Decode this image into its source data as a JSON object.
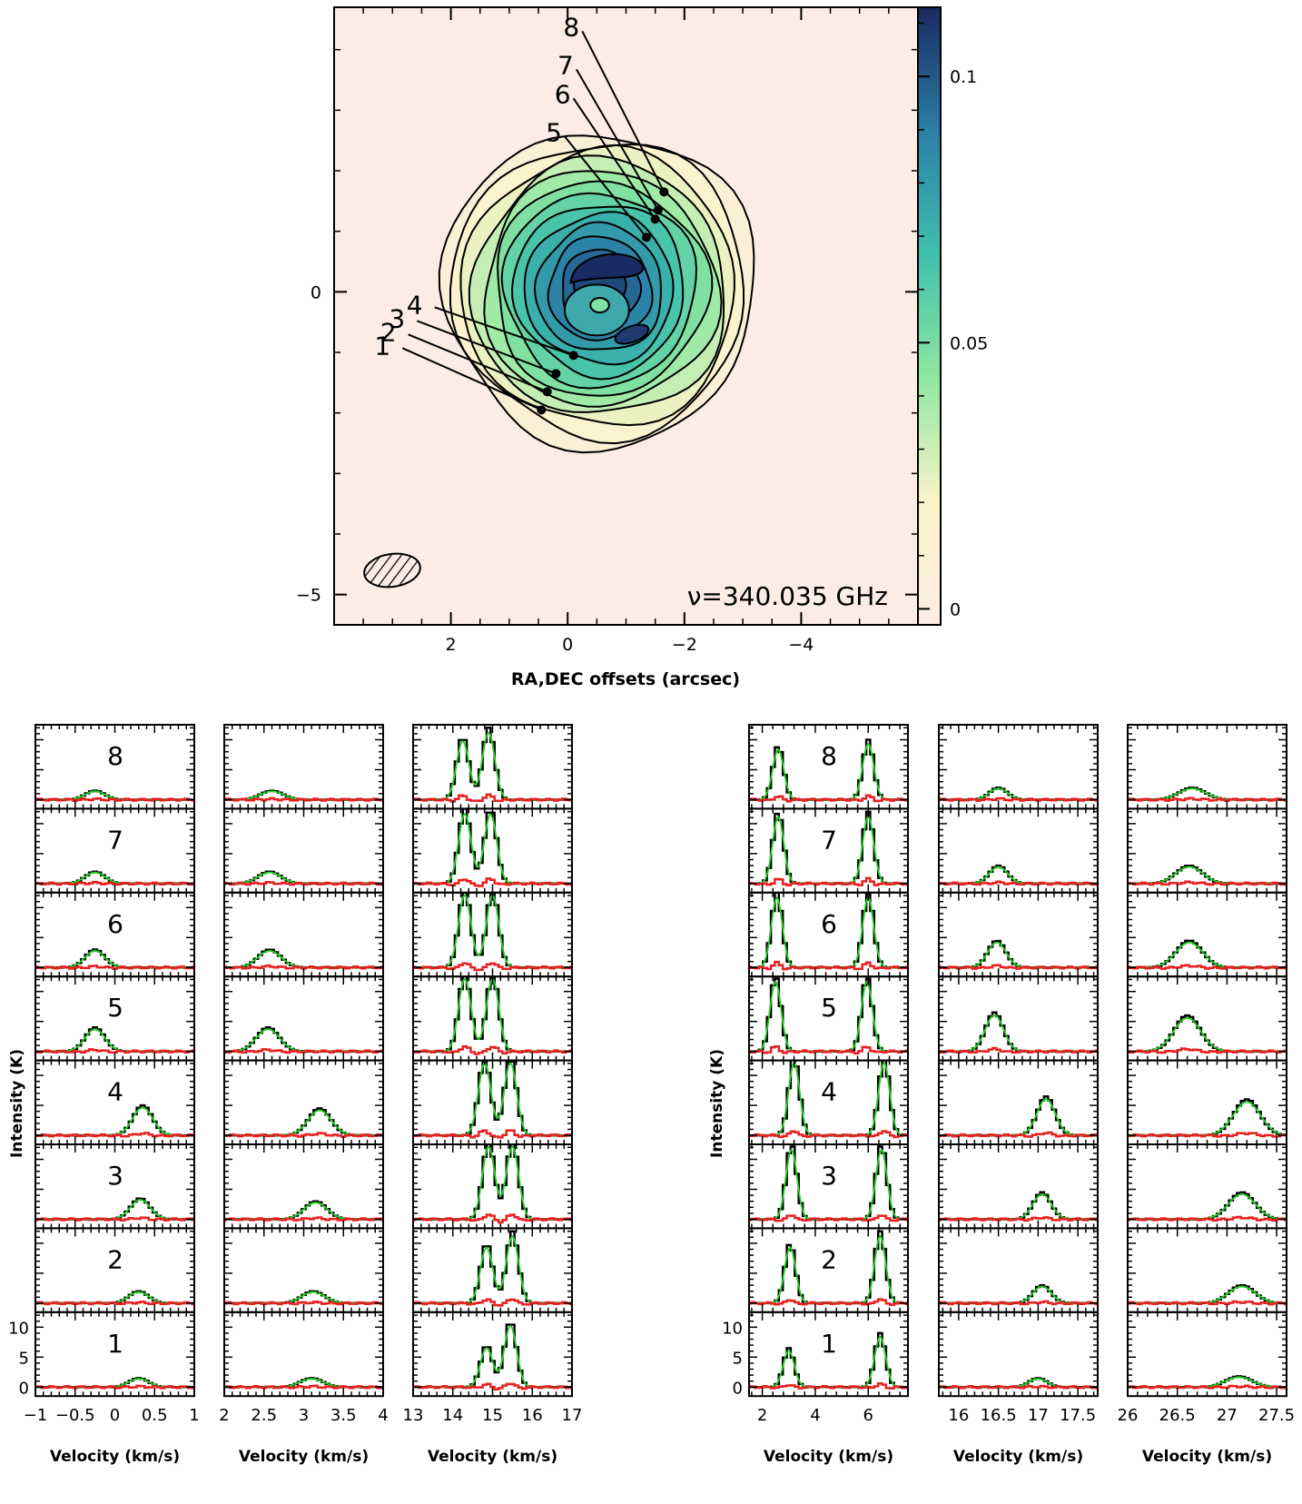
{
  "map": {
    "xlabel": "RA,DEC offsets (arcsec)",
    "annotation": "ν=340.035 GHz",
    "x_ticks": [
      "2",
      "0",
      "−2",
      "−4"
    ],
    "x_tick_values": [
      2,
      0,
      -2,
      -4
    ],
    "y_ticks": [
      "0",
      "−5"
    ],
    "y_tick_values": [
      0,
      -5
    ],
    "xlim": [
      4,
      -6
    ],
    "ylim": [
      -5.5,
      4.7
    ],
    "colorbar_ticks": [
      "0.1",
      "0.05",
      "0"
    ],
    "colorbar_values": [
      0.1,
      0.05,
      0
    ],
    "colorbar_range": [
      -0.003,
      0.113
    ],
    "colormap": [
      "#fcece4",
      "#fbf3c8",
      "#8ee8a0",
      "#3fc0ac",
      "#2b7fa8",
      "#1a2a62"
    ],
    "positions": [
      {
        "label": "1",
        "x": 0.45,
        "y": -1.95
      },
      {
        "label": "2",
        "x": 0.35,
        "y": -1.65
      },
      {
        "label": "3",
        "x": 0.2,
        "y": -1.35
      },
      {
        "label": "4",
        "x": -0.1,
        "y": -1.05
      },
      {
        "label": "5",
        "x": -1.35,
        "y": 0.9
      },
      {
        "label": "6",
        "x": -1.5,
        "y": 1.2
      },
      {
        "label": "7",
        "x": -1.55,
        "y": 1.35
      },
      {
        "label": "8",
        "x": -1.65,
        "y": 1.65
      }
    ]
  },
  "spectra": {
    "ylabel": "Intensity (K)",
    "xlabel": "Velocity (km/s)",
    "y_ticks": [
      "10",
      "5",
      "0"
    ],
    "y_tick_values": [
      10,
      5,
      0
    ],
    "ylim": [
      -1.5,
      12.5
    ],
    "row_labels": [
      "8",
      "7",
      "6",
      "5",
      "4",
      "3",
      "2",
      "1"
    ],
    "colors": {
      "observed": "#000000",
      "model": "#20d020",
      "residual": "#e82020"
    },
    "panels": [
      {
        "xlim": [
          -1,
          1
        ],
        "x_ticks": [
          "−1",
          "−0.5",
          "0",
          "0.5",
          "1"
        ],
        "x_tick_values": [
          -1,
          -0.5,
          0,
          0.5,
          1
        ],
        "peaks": [
          [
            -0.25,
            1.5
          ],
          [
            -0.25,
            2.0
          ],
          [
            -0.25,
            3.0
          ],
          [
            -0.25,
            4.0
          ],
          [
            0.35,
            5.0
          ],
          [
            0.32,
            3.5
          ],
          [
            0.3,
            2.0
          ],
          [
            0.3,
            1.5
          ]
        ],
        "width": 0.12
      },
      {
        "xlim": [
          2,
          4
        ],
        "x_ticks": [
          "2",
          "2.5",
          "3",
          "3.5",
          "4"
        ],
        "x_tick_values": [
          2,
          2.5,
          3,
          3.5,
          4
        ],
        "peaks": [
          [
            2.6,
            1.5
          ],
          [
            2.57,
            2.0
          ],
          [
            2.57,
            3.0
          ],
          [
            2.55,
            4.0
          ],
          [
            3.2,
            4.5
          ],
          [
            3.15,
            3.0
          ],
          [
            3.12,
            2.0
          ],
          [
            3.1,
            1.5
          ]
        ],
        "width": 0.14
      },
      {
        "xlim": [
          13,
          17
        ],
        "x_ticks": [
          "13",
          "14",
          "15",
          "16",
          "17"
        ],
        "x_tick_values": [
          13,
          14,
          15,
          16,
          17
        ],
        "peaks": [
          [
            14.25,
            10.5
          ],
          [
            14.9,
            12.0
          ],
          [
            14.3,
            12.5
          ],
          [
            14.95,
            12.5
          ],
          [
            14.3,
            13.0
          ],
          [
            15.0,
            13.0
          ],
          [
            14.3,
            13.0
          ],
          [
            15.0,
            13.0
          ],
          [
            14.8,
            13.0
          ],
          [
            15.45,
            13.0
          ],
          [
            14.9,
            13.0
          ],
          [
            15.5,
            13.0
          ],
          [
            14.85,
            10.0
          ],
          [
            15.5,
            12.0
          ],
          [
            14.85,
            7.0
          ],
          [
            15.45,
            11.0
          ]
        ],
        "width": 0.15
      },
      {
        "xlim": [
          1.5,
          7.5
        ],
        "x_ticks": [
          "2",
          "4",
          "6"
        ],
        "x_tick_values": [
          2,
          4,
          6
        ],
        "peaks": [
          [
            2.6,
            9.0
          ],
          [
            6.0,
            10.0
          ],
          [
            2.6,
            12.0
          ],
          [
            6.0,
            12.0
          ],
          [
            2.55,
            12.5
          ],
          [
            6.0,
            12.5
          ],
          [
            2.5,
            12.5
          ],
          [
            5.95,
            12.5
          ],
          [
            3.2,
            13.0
          ],
          [
            6.6,
            13.0
          ],
          [
            3.1,
            12.5
          ],
          [
            6.5,
            12.5
          ],
          [
            3.05,
            10.0
          ],
          [
            6.45,
            12.0
          ],
          [
            3.0,
            6.5
          ],
          [
            6.45,
            9.0
          ]
        ],
        "width": 0.2
      },
      {
        "xlim": [
          15.75,
          17.75
        ],
        "x_ticks": [
          "16",
          "16.5",
          "17",
          "17.5"
        ],
        "x_tick_values": [
          16,
          16.5,
          17,
          17.5
        ],
        "peaks": [
          [
            16.5,
            2.0
          ],
          [
            16.5,
            3.0
          ],
          [
            16.48,
            4.5
          ],
          [
            16.45,
            6.5
          ],
          [
            17.1,
            6.5
          ],
          [
            17.05,
            4.5
          ],
          [
            17.05,
            3.0
          ],
          [
            17.0,
            1.5
          ]
        ],
        "width": 0.11
      },
      {
        "xlim": [
          26,
          27.6
        ],
        "x_ticks": [
          "26",
          "26.5",
          "27",
          "27.5"
        ],
        "x_tick_values": [
          26,
          26.5,
          27,
          27.5
        ],
        "peaks": [
          [
            26.65,
            2.0
          ],
          [
            26.62,
            3.0
          ],
          [
            26.62,
            4.5
          ],
          [
            26.6,
            6.0
          ],
          [
            27.2,
            6.0
          ],
          [
            27.15,
            4.5
          ],
          [
            27.15,
            3.0
          ],
          [
            27.12,
            1.8
          ]
        ],
        "width": 0.13
      }
    ]
  }
}
